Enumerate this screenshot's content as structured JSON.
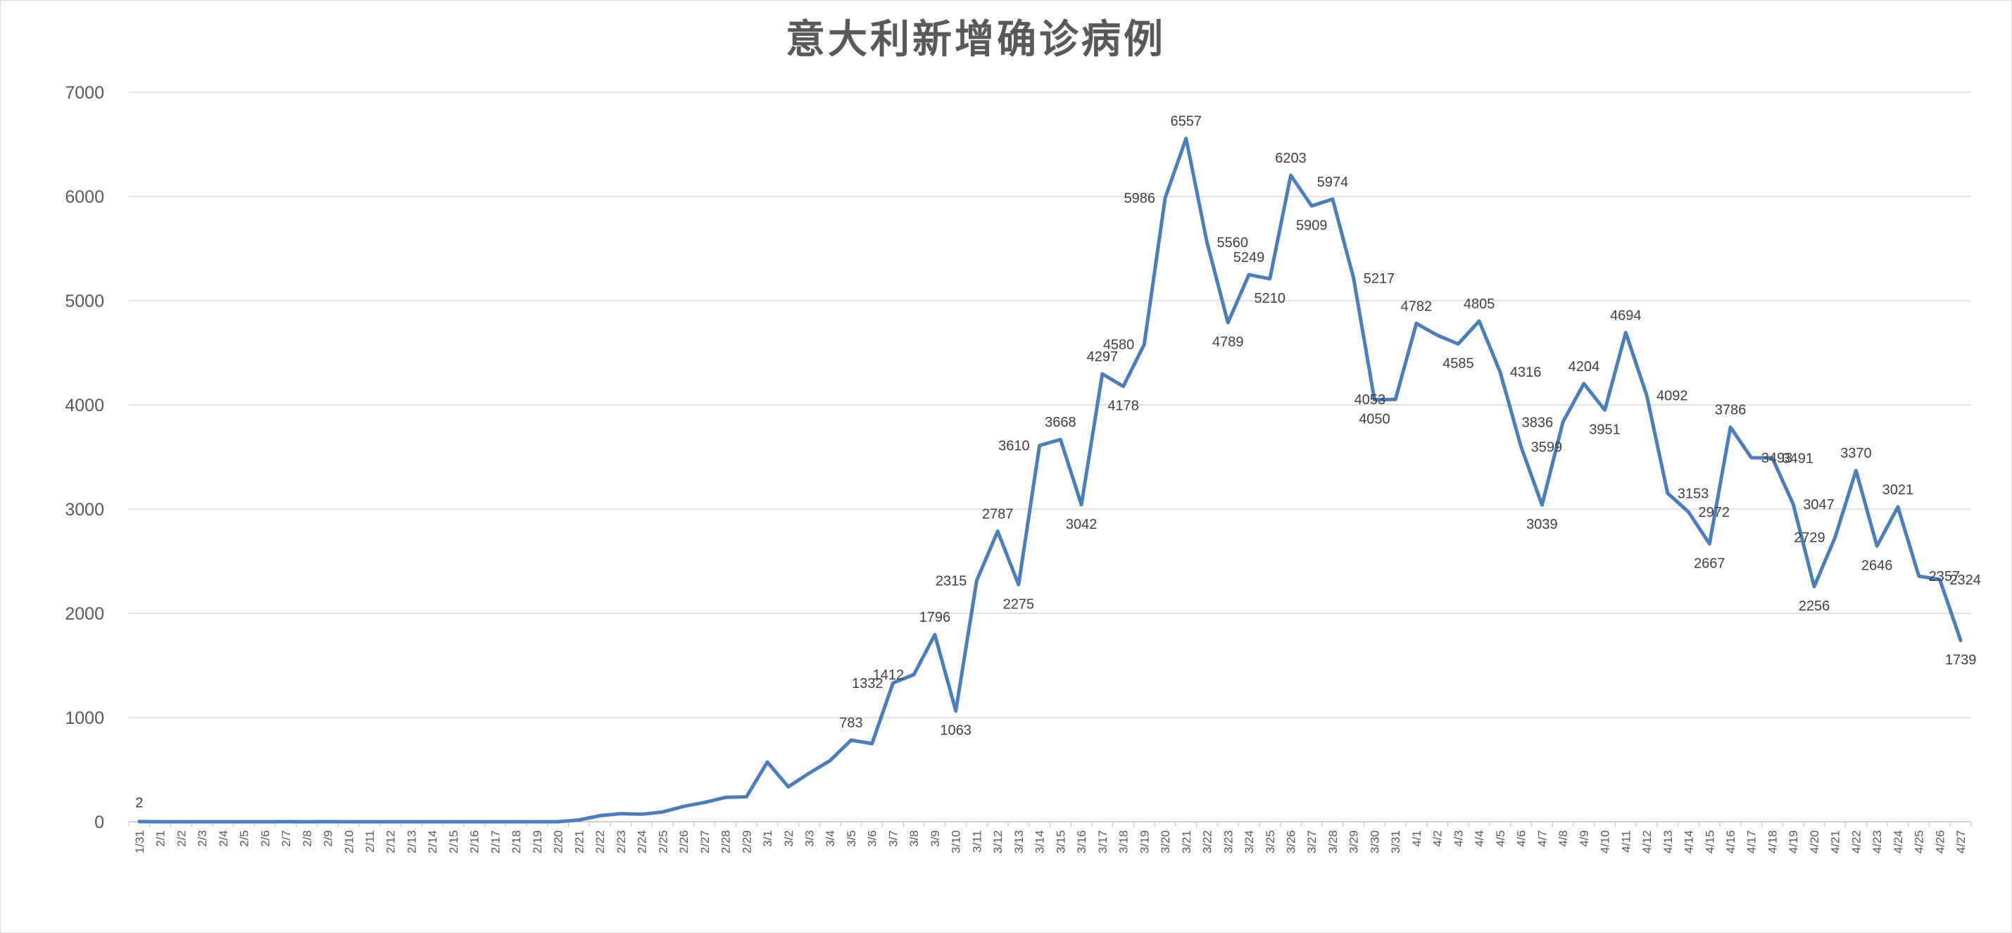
{
  "chart_data": {
    "type": "line",
    "title": "意大利新增确诊病例",
    "xlabel": "",
    "ylabel": "",
    "ylim": [
      0,
      7000
    ],
    "yticks": [
      0,
      1000,
      2000,
      3000,
      4000,
      5000,
      6000,
      7000
    ],
    "grid": true,
    "legend": "none",
    "line_color": "#4a7ebb",
    "categories": [
      "1/31",
      "2/1",
      "2/2",
      "2/3",
      "2/4",
      "2/5",
      "2/6",
      "2/7",
      "2/8",
      "2/9",
      "2/10",
      "2/11",
      "2/12",
      "2/13",
      "2/14",
      "2/15",
      "2/16",
      "2/17",
      "2/18",
      "2/19",
      "2/20",
      "2/21",
      "2/22",
      "2/23",
      "2/24",
      "2/25",
      "2/26",
      "2/27",
      "2/28",
      "2/29",
      "3/1",
      "3/2",
      "3/3",
      "3/4",
      "3/5",
      "3/6",
      "3/7",
      "3/8",
      "3/9",
      "3/10",
      "3/11",
      "3/12",
      "3/13",
      "3/14",
      "3/15",
      "3/16",
      "3/17",
      "3/18",
      "3/19",
      "3/20",
      "3/21",
      "3/22",
      "3/23",
      "3/24",
      "3/25",
      "3/26",
      "3/27",
      "3/28",
      "3/29",
      "3/30",
      "3/31",
      "4/1",
      "4/2",
      "4/3",
      "4/4",
      "4/5",
      "4/6",
      "4/7",
      "4/8",
      "4/9",
      "4/10",
      "4/11",
      "4/12",
      "4/13",
      "4/14",
      "4/15",
      "4/16",
      "4/17",
      "4/18",
      "4/19",
      "4/20",
      "4/21",
      "4/22",
      "4/23",
      "4/24",
      "4/25",
      "4/26",
      "4/27"
    ],
    "values": [
      2,
      0,
      0,
      0,
      0,
      0,
      0,
      1,
      0,
      1,
      0,
      0,
      0,
      0,
      0,
      0,
      0,
      0,
      0,
      0,
      0,
      17,
      58,
      78,
      72,
      94,
      147,
      185,
      234,
      239,
      573,
      335,
      466,
      587,
      783,
      750,
      1332,
      1412,
      1796,
      1063,
      2315,
      2787,
      2275,
      3610,
      3668,
      3042,
      4297,
      4178,
      4580,
      5986,
      6557,
      5560,
      4789,
      5249,
      5210,
      6203,
      5909,
      5974,
      5217,
      4050,
      4053,
      4782,
      4668,
      4585,
      4805,
      4316,
      3599,
      3039,
      3836,
      4204,
      3951,
      4694,
      4092,
      3153,
      2972,
      2667,
      3786,
      3493,
      3491,
      3047,
      2256,
      2729,
      3370,
      2646,
      3021,
      2357,
      2324,
      1739
    ],
    "labels": [
      {
        "i": 0,
        "text": "2"
      },
      {
        "i": 34,
        "text": "783"
      },
      {
        "i": 36,
        "text": "1332"
      },
      {
        "i": 37,
        "text": "1412"
      },
      {
        "i": 38,
        "text": "1796"
      },
      {
        "i": 39,
        "text": "1063"
      },
      {
        "i": 40,
        "text": "2315"
      },
      {
        "i": 41,
        "text": "2787"
      },
      {
        "i": 42,
        "text": "2275"
      },
      {
        "i": 43,
        "text": "3610"
      },
      {
        "i": 44,
        "text": "3668"
      },
      {
        "i": 45,
        "text": "3042"
      },
      {
        "i": 46,
        "text": "4297"
      },
      {
        "i": 47,
        "text": "4178"
      },
      {
        "i": 48,
        "text": "4580"
      },
      {
        "i": 49,
        "text": "5986"
      },
      {
        "i": 50,
        "text": "6557"
      },
      {
        "i": 51,
        "text": "5560"
      },
      {
        "i": 52,
        "text": "4789"
      },
      {
        "i": 53,
        "text": "5249"
      },
      {
        "i": 54,
        "text": "5210"
      },
      {
        "i": 55,
        "text": "6203"
      },
      {
        "i": 56,
        "text": "5909"
      },
      {
        "i": 57,
        "text": "5974"
      },
      {
        "i": 58,
        "text": "5217"
      },
      {
        "i": 59,
        "text": "4050"
      },
      {
        "i": 60,
        "text": "4053"
      },
      {
        "i": 61,
        "text": "4782"
      },
      {
        "i": 63,
        "text": "4585"
      },
      {
        "i": 64,
        "text": "4805"
      },
      {
        "i": 65,
        "text": "4316"
      },
      {
        "i": 66,
        "text": "3599"
      },
      {
        "i": 67,
        "text": "3039"
      },
      {
        "i": 68,
        "text": "3836"
      },
      {
        "i": 69,
        "text": "4204"
      },
      {
        "i": 70,
        "text": "3951"
      },
      {
        "i": 71,
        "text": "4694"
      },
      {
        "i": 72,
        "text": "4092"
      },
      {
        "i": 73,
        "text": "3153"
      },
      {
        "i": 74,
        "text": "2972"
      },
      {
        "i": 75,
        "text": "2667"
      },
      {
        "i": 76,
        "text": "3786"
      },
      {
        "i": 77,
        "text": "3493"
      },
      {
        "i": 78,
        "text": "3491"
      },
      {
        "i": 79,
        "text": "3047"
      },
      {
        "i": 80,
        "text": "2256"
      },
      {
        "i": 81,
        "text": "2729"
      },
      {
        "i": 82,
        "text": "3370"
      },
      {
        "i": 83,
        "text": "2646"
      },
      {
        "i": 84,
        "text": "3021"
      },
      {
        "i": 85,
        "text": "2357"
      },
      {
        "i": 86,
        "text": "2324"
      },
      {
        "i": 87,
        "text": "1739"
      }
    ]
  }
}
